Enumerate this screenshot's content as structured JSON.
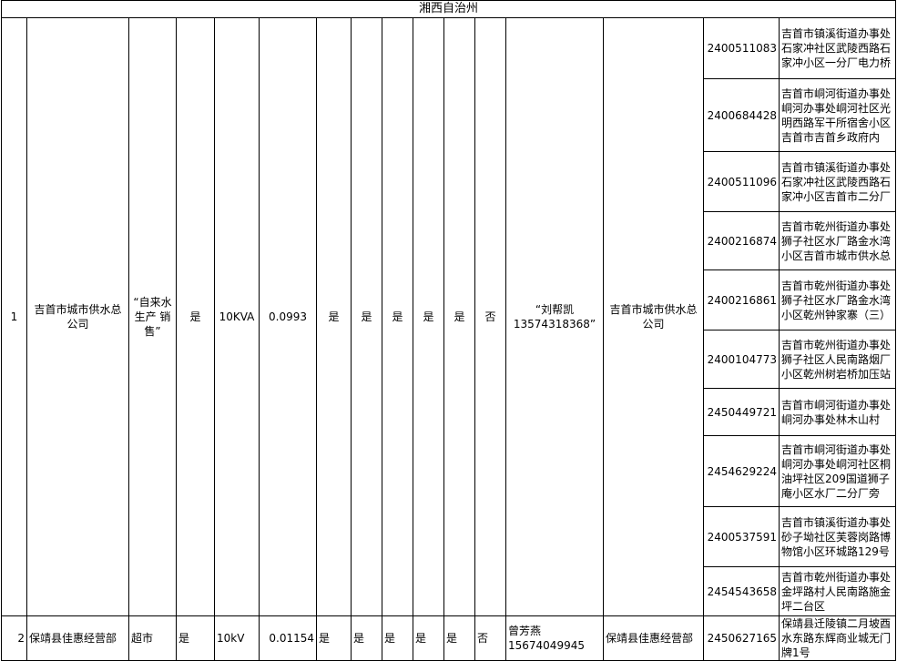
{
  "title": "湘西自治州",
  "rows": [
    {
      "index": "1",
      "company": "吉首市城市供水总公司",
      "business": "“自来水生产 销售”",
      "col4": "是",
      "capacity": "10KVA",
      "value": "0.0993",
      "flags": [
        "是",
        "是",
        "是",
        "是",
        "是",
        "否"
      ],
      "contact": "“刘帮凯13574318368”",
      "unit": "吉首市城市供水总公司",
      "accounts": [
        {
          "id": "2400511083",
          "address": "吉首市镇溪街道办事处石家冲社区武陵西路石家冲小区一分厂电力桥"
        },
        {
          "id": "2400684428",
          "address": "吉首市峒河街道办事处峒河办事处峒河社区光明西路军干所宿舍小区吉首市吉首乡政府内"
        },
        {
          "id": "2400511096",
          "address": "吉首市镇溪街道办事处石家冲社区武陵西路石家冲小区吉首市二分厂"
        },
        {
          "id": "2400216874",
          "address": "吉首市乾州街道办事处狮子社区水厂路金水湾小区吉首市城市供水总"
        },
        {
          "id": "2400216861",
          "address": "吉首市乾州街道办事处狮子社区水厂路金水湾小区乾州钟家寨（三）"
        },
        {
          "id": "2400104773",
          "address": "吉首市乾州街道办事处狮子社区人民南路烟厂小区乾州树岩桥加压站"
        },
        {
          "id": "2450449721",
          "address": "吉首市峒河街道办事处峒河办事处林木山村"
        },
        {
          "id": "2454629224",
          "address": "吉首市峒河街道办事处峒河办事处峒河社区桐油坪社区209国道狮子庵小区水厂二分厂旁"
        },
        {
          "id": "2400537591",
          "address": "吉首市镇溪街道办事处砂子坳社区芙蓉岗路博物馆小区环城路129号"
        },
        {
          "id": "2454543658",
          "address": "吉首市乾州街道办事处金坪路村人民南路施金坪二台区"
        }
      ]
    },
    {
      "index": "2",
      "company": "保靖县佳惠经营部",
      "business": "超市",
      "col4": "是",
      "capacity": "10kV",
      "value": "0.01154",
      "flags": [
        "是",
        "是",
        "是",
        "是",
        "是",
        "否"
      ],
      "contact": "曾芳燕15674049945",
      "unit": "保靖县佳惠经营部",
      "accounts": [
        {
          "id": "2450627165",
          "address": "保靖县迁陵镇二月坡酉水东路东辉商业城无门牌1号"
        }
      ]
    }
  ]
}
